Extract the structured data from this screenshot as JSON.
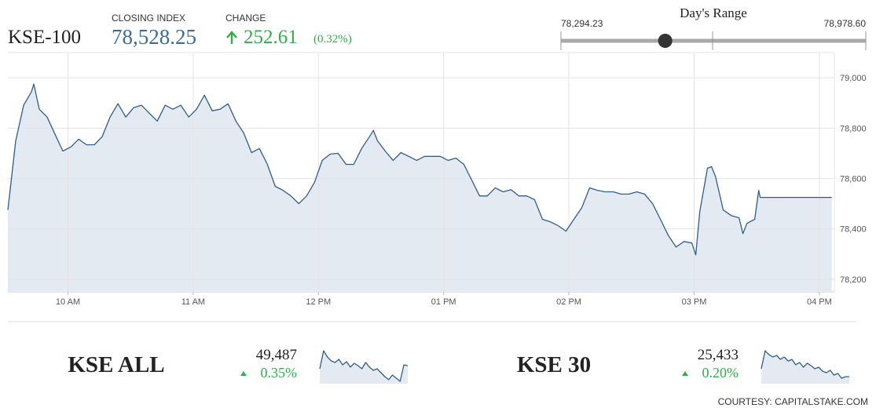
{
  "header": {
    "symbol": "KSE-100",
    "closing_index_label": "CLOSING INDEX",
    "closing_index": {
      "value": 78528.25,
      "label": "78,528.25"
    },
    "change_label": "CHANGE",
    "change": "252.61",
    "change_percent": "(0.32%)",
    "day_range": {
      "title": "Day's Range",
      "low": {
        "value": 78294.23,
        "label": "78,294.23"
      },
      "high": {
        "value": 78978.6,
        "label": "78,978.60"
      }
    }
  },
  "chart_data": [
    {
      "type": "line",
      "color": "#2f5d8c",
      "fill": "#e4eaf1",
      "x": [
        9.52,
        9.583,
        9.646,
        9.708,
        9.727,
        9.771,
        9.834,
        9.897,
        9.959,
        10.022,
        10.085,
        10.148,
        10.211,
        10.273,
        10.336,
        10.399,
        10.462,
        10.524,
        10.587,
        10.65,
        10.713,
        10.776,
        10.838,
        10.901,
        10.964,
        11.027,
        11.09,
        11.152,
        11.215,
        11.278,
        11.341,
        11.403,
        11.466,
        11.529,
        11.592,
        11.655,
        11.717,
        11.78,
        11.843,
        11.906,
        11.968,
        12.031,
        12.094,
        12.157,
        12.22,
        12.282,
        12.345,
        12.408,
        12.439,
        12.471,
        12.533,
        12.596,
        12.659,
        12.722,
        12.784,
        12.847,
        12.91,
        12.973,
        13.036,
        13.098,
        13.161,
        13.224,
        13.287,
        13.349,
        13.412,
        13.475,
        13.538,
        13.601,
        13.663,
        13.726,
        13.789,
        13.852,
        13.914,
        13.977,
        14.04,
        14.103,
        14.166,
        14.228,
        14.291,
        14.354,
        14.417,
        14.48,
        14.542,
        14.605,
        14.668,
        14.731,
        14.793,
        14.856,
        14.919,
        14.982,
        15.013,
        15.045,
        15.107,
        15.139,
        15.17,
        15.233,
        15.296,
        15.359,
        15.39,
        15.422,
        15.484,
        15.516,
        15.528,
        16.099
      ],
      "values": [
        78475,
        78750,
        78891,
        78944,
        78975,
        78875,
        78844,
        78775,
        78709,
        78725,
        78756,
        78734,
        78734,
        78766,
        78844,
        78897,
        78844,
        78881,
        78891,
        78859,
        78828,
        78891,
        78875,
        78891,
        78844,
        78875,
        78931,
        78869,
        78875,
        78897,
        78828,
        78781,
        78703,
        78719,
        78656,
        78569,
        78553,
        78531,
        78500,
        78531,
        78584,
        78672,
        78697,
        78700,
        78656,
        78656,
        78719,
        78766,
        78791,
        78750,
        78709,
        78672,
        78703,
        78688,
        78672,
        78688,
        78688,
        78688,
        78672,
        78681,
        78656,
        78594,
        78531,
        78531,
        78563,
        78547,
        78556,
        78531,
        78531,
        78516,
        78438,
        78428,
        78413,
        78391,
        78438,
        78484,
        78563,
        78553,
        78547,
        78547,
        78538,
        78538,
        78547,
        78538,
        78500,
        78438,
        78375,
        78328,
        78350,
        78344,
        78297,
        78469,
        78641,
        78647,
        78609,
        78475,
        78453,
        78444,
        78381,
        78422,
        78438,
        78553,
        78525,
        78525
      ],
      "xlim": [
        9.52,
        16.12
      ],
      "ylim": [
        78150,
        79100
      ],
      "xticks": [
        {
          "value": 10,
          "label": "10 AM"
        },
        {
          "value": 11,
          "label": "11 AM"
        },
        {
          "value": 12,
          "label": "12 PM"
        },
        {
          "value": 13,
          "label": "01 PM"
        },
        {
          "value": 14,
          "label": "02 PM"
        },
        {
          "value": 15,
          "label": "03 PM"
        },
        {
          "value": 16,
          "label": "04 PM"
        }
      ],
      "yticks": [
        {
          "value": 78200,
          "label": "78,200"
        },
        {
          "value": 78400,
          "label": "78,400"
        },
        {
          "value": 78600,
          "label": "78,600"
        },
        {
          "value": 78800,
          "label": "78,800"
        },
        {
          "value": 79000,
          "label": "79,000"
        }
      ],
      "grid": true
    },
    {
      "type": "line",
      "color": "#2f5d8c",
      "fill": "#e4eaf1",
      "values": [
        49469,
        49684,
        49609,
        49563,
        49544,
        49581,
        49516,
        49553,
        49488,
        49534,
        49506,
        49469,
        49544,
        49488,
        49450,
        49469,
        49422,
        49375,
        49338,
        49394,
        49356,
        49319,
        49516,
        49506
      ],
      "ylim": [
        49300,
        49750
      ]
    },
    {
      "type": "line",
      "color": "#2f5d8c",
      "fill": "#e4eaf1",
      "values": [
        25482,
        25586,
        25564,
        25550,
        25559,
        25536,
        25550,
        25527,
        25536,
        25505,
        25518,
        25491,
        25514,
        25500,
        25482,
        25491,
        25468,
        25459,
        25473,
        25445,
        25455,
        25427,
        25436,
        25436
      ],
      "ylim": [
        25400,
        25600
      ]
    }
  ],
  "indices": [
    {
      "name": "KSE ALL",
      "value": "49,487",
      "change": "0.35%"
    },
    {
      "name": "KSE 30",
      "value": "25,433",
      "change": "0.20%"
    }
  ],
  "footer": "COURTESY: CAPITALSTAKE.COM"
}
